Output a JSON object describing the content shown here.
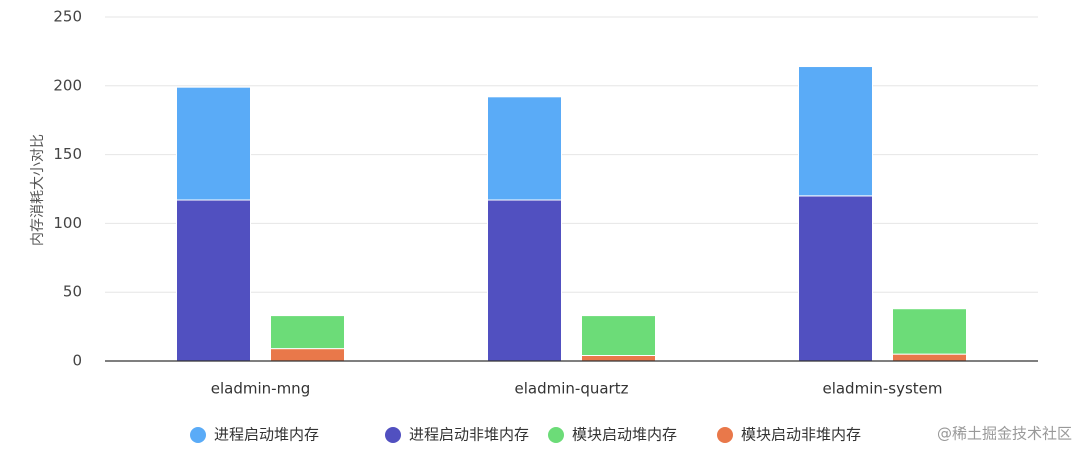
{
  "chart_data": {
    "type": "stacked_bar",
    "y_label": "内存消耗大小对比",
    "categories": [
      "eladmin-mng",
      "eladmin-quartz",
      "eladmin-system"
    ],
    "series": [
      {
        "name": "进程启动堆内存",
        "color": "#5aabf7",
        "stack": 0,
        "values": [
          82,
          75,
          94
        ]
      },
      {
        "name": "进程启动非堆内存",
        "color": "#5150c0",
        "stack": 0,
        "values": [
          117,
          117,
          120
        ]
      },
      {
        "name": "模块启动堆内存",
        "color": "#6cdc78",
        "stack": 1,
        "values": [
          24,
          29,
          33
        ]
      },
      {
        "name": "模块启动非堆内存",
        "color": "#e9784a",
        "stack": 1,
        "values": [
          9,
          4,
          5
        ]
      }
    ],
    "ylim": [
      0,
      250
    ],
    "yticks": [
      0,
      50,
      100,
      150,
      200,
      250
    ],
    "grid": true,
    "legend": "bottom",
    "watermark": "@稀土掘金技术社区"
  }
}
